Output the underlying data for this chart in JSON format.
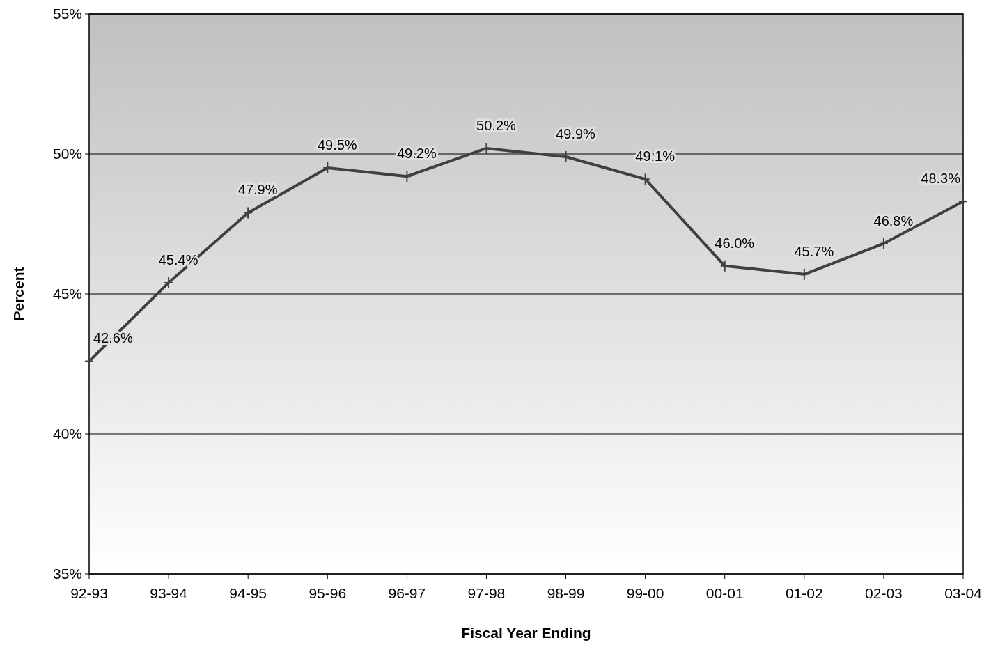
{
  "chart_data": {
    "type": "line",
    "xlabel": "Fiscal Year Ending",
    "ylabel": "Percent",
    "categories": [
      "92-93",
      "93-94",
      "94-95",
      "95-96",
      "96-97",
      "97-98",
      "98-99",
      "99-00",
      "00-01",
      "01-02",
      "02-03",
      "03-04"
    ],
    "series": [
      {
        "color": "#404040",
        "values": [
          42.6,
          45.4,
          47.9,
          49.5,
          49.2,
          50.2,
          49.9,
          49.1,
          46.0,
          45.7,
          46.8,
          48.3
        ],
        "value_labels": [
          "42.6%",
          "45.4%",
          "47.9%",
          "49.5%",
          "49.2%",
          "50.2%",
          "49.9%",
          "49.1%",
          "46.0%",
          "45.7%",
          "46.8%",
          "48.3%"
        ]
      }
    ],
    "ylim": [
      35,
      55
    ],
    "yticks": [
      {
        "value": 35,
        "label": "35%"
      },
      {
        "value": 40,
        "label": "40%"
      },
      {
        "value": 45,
        "label": "45%"
      },
      {
        "value": 50,
        "label": "50%"
      },
      {
        "value": 55,
        "label": "55%"
      }
    ],
    "grid": "y",
    "marker": "cross",
    "line_style": "solid"
  }
}
